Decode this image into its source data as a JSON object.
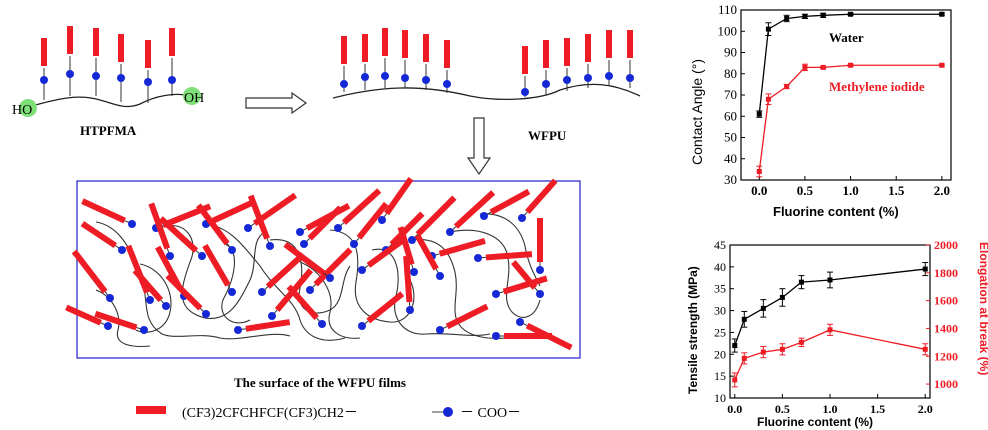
{
  "scheme": {
    "htpfma_label": "HTPFMA",
    "wfpu_label": "WFPU",
    "ho_label": "HO",
    "oh_label": "OH",
    "surface_caption": "The surface of the WFPU films",
    "legend_fluoro_group": "(CF3)2CFCHFCF(CF3)CH2－",
    "legend_coo": "－ COO－"
  },
  "colors": {
    "fluoro_chain": "#ee1c24",
    "ester_dot": "#1428d6",
    "hydroxyl": "#7fe07a",
    "series_water": "#000000",
    "series_ch2i2": "#ee1c24",
    "frame": "#1f1fd0"
  },
  "chart_data": [
    {
      "type": "line",
      "title": "",
      "xlabel": "Fluorine content (%)",
      "ylabel": "Contact Angle (°)",
      "xlim": [
        -0.2,
        2.1
      ],
      "ylim": [
        30,
        110
      ],
      "xticks": [
        "0.0",
        "0.5",
        "1.0",
        "1.5",
        "2.0"
      ],
      "yticks": [
        "30",
        "40",
        "50",
        "60",
        "70",
        "80",
        "90",
        "100",
        "110"
      ],
      "series": [
        {
          "name": "Water",
          "x": [
            0,
            0.1,
            0.3,
            0.5,
            0.7,
            1.0,
            2.0
          ],
          "y": [
            61,
            101,
            106,
            107,
            107.5,
            108,
            108
          ],
          "err": [
            1.5,
            3,
            1.5,
            1,
            1,
            0.5,
            0.5
          ]
        },
        {
          "name": "Methylene iodide",
          "x": [
            0,
            0.1,
            0.3,
            0.5,
            0.7,
            1.0,
            2.0
          ],
          "y": [
            34,
            68,
            74,
            83,
            83,
            84,
            84
          ],
          "err": [
            2.5,
            2.5,
            1,
            1.5,
            0.5,
            0.5,
            0.5
          ]
        }
      ]
    },
    {
      "type": "line",
      "title": "",
      "xlabel": "Fluorine content (%)",
      "ylabel": "Tensile strength (MPa)",
      "y2label": "Elongation at break (%)",
      "xlim": [
        -0.05,
        2.05
      ],
      "ylim": [
        10,
        45
      ],
      "y2lim": [
        900,
        2000
      ],
      "xticks": [
        "0.0",
        "0.5",
        "1.0",
        "1.5",
        "2.0"
      ],
      "yticks": [
        "10",
        "15",
        "20",
        "25",
        "30",
        "35",
        "40",
        "45"
      ],
      "y2ticks": [
        "1000",
        "1200",
        "1400",
        "1600",
        "1800",
        "2000"
      ],
      "series": [
        {
          "name": "Tensile strength",
          "axis": "left",
          "x": [
            0,
            0.1,
            0.3,
            0.5,
            0.7,
            1.0,
            2.0
          ],
          "y": [
            22,
            28,
            30.5,
            33,
            36.5,
            37,
            39.5
          ],
          "err": [
            1.5,
            1.8,
            2,
            2,
            1.5,
            1.8,
            1.5
          ]
        },
        {
          "name": "Elongation at break",
          "axis": "right",
          "x": [
            0,
            0.1,
            0.3,
            0.5,
            0.7,
            1.0,
            2.0
          ],
          "y": [
            1030,
            1185,
            1230,
            1250,
            1300,
            1390,
            1250
          ],
          "err": [
            50,
            40,
            40,
            40,
            30,
            40,
            40
          ]
        }
      ]
    }
  ]
}
